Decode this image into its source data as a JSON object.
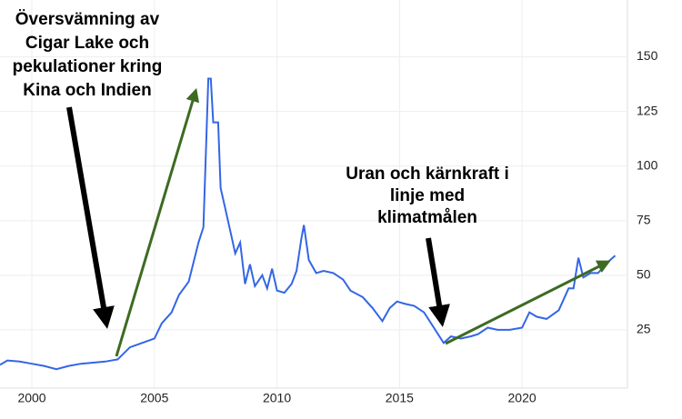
{
  "chart_data": {
    "type": "line",
    "annotations": [
      {
        "lines": [
          "Översvämning av",
          "Cigar Lake och",
          "pekulationer kring",
          "Kina och Indien"
        ]
      },
      {
        "lines": [
          "Uran och kärnkraft i",
          "linje med",
          "klimatmålen"
        ]
      }
    ],
    "xlim": [
      1998.7,
      2024.3
    ],
    "xticks": [
      2000,
      2005,
      2010,
      2015,
      2020
    ],
    "ylim": [
      0,
      176
    ],
    "yticks": [
      25,
      50,
      75,
      100,
      125,
      150
    ],
    "grid": true,
    "series": [
      {
        "color": "#3366e6",
        "x": [
          1998.7,
          1999,
          1999.5,
          2000,
          2000.5,
          2001,
          2001.5,
          2002,
          2002.5,
          2003,
          2003.5,
          2004,
          2004.5,
          2005,
          2005.3,
          2005.7,
          2006,
          2006.4,
          2006.8,
          2007.0,
          2007.2,
          2007.3,
          2007.4,
          2007.6,
          2007.7,
          2007.9,
          2008.1,
          2008.3,
          2008.5,
          2008.7,
          2008.9,
          2009.1,
          2009.4,
          2009.6,
          2009.8,
          2010,
          2010.3,
          2010.6,
          2010.8,
          2011.0,
          2011.1,
          2011.3,
          2011.6,
          2011.9,
          2012.3,
          2012.7,
          2013,
          2013.5,
          2013.9,
          2014.3,
          2014.6,
          2014.9,
          2015.2,
          2015.6,
          2016,
          2016.4,
          2016.8,
          2017.1,
          2017.5,
          2017.9,
          2018.2,
          2018.6,
          2019,
          2019.5,
          2020,
          2020.3,
          2020.6,
          2021,
          2021.5,
          2021.9,
          2022.1,
          2022.3,
          2022.5,
          2022.8,
          2023.1,
          2023.5,
          2023.8
        ],
        "values": [
          9,
          11,
          10.5,
          9.5,
          8.5,
          7,
          8.5,
          9.5,
          10,
          10.5,
          11.5,
          17,
          19,
          21,
          28,
          33,
          41,
          47,
          65,
          72,
          140,
          140,
          120,
          120,
          90,
          80,
          70,
          60,
          65,
          46,
          55,
          45,
          50,
          44,
          53,
          43,
          42,
          46,
          52,
          67,
          73,
          57,
          51,
          52,
          51,
          48,
          43,
          40,
          35,
          29,
          35,
          38,
          37,
          36,
          33,
          26,
          19,
          22,
          21,
          22,
          23,
          26,
          25,
          25,
          26,
          33,
          31,
          30,
          34,
          44,
          44,
          58,
          49,
          51,
          51,
          56,
          59
        ]
      }
    ]
  }
}
